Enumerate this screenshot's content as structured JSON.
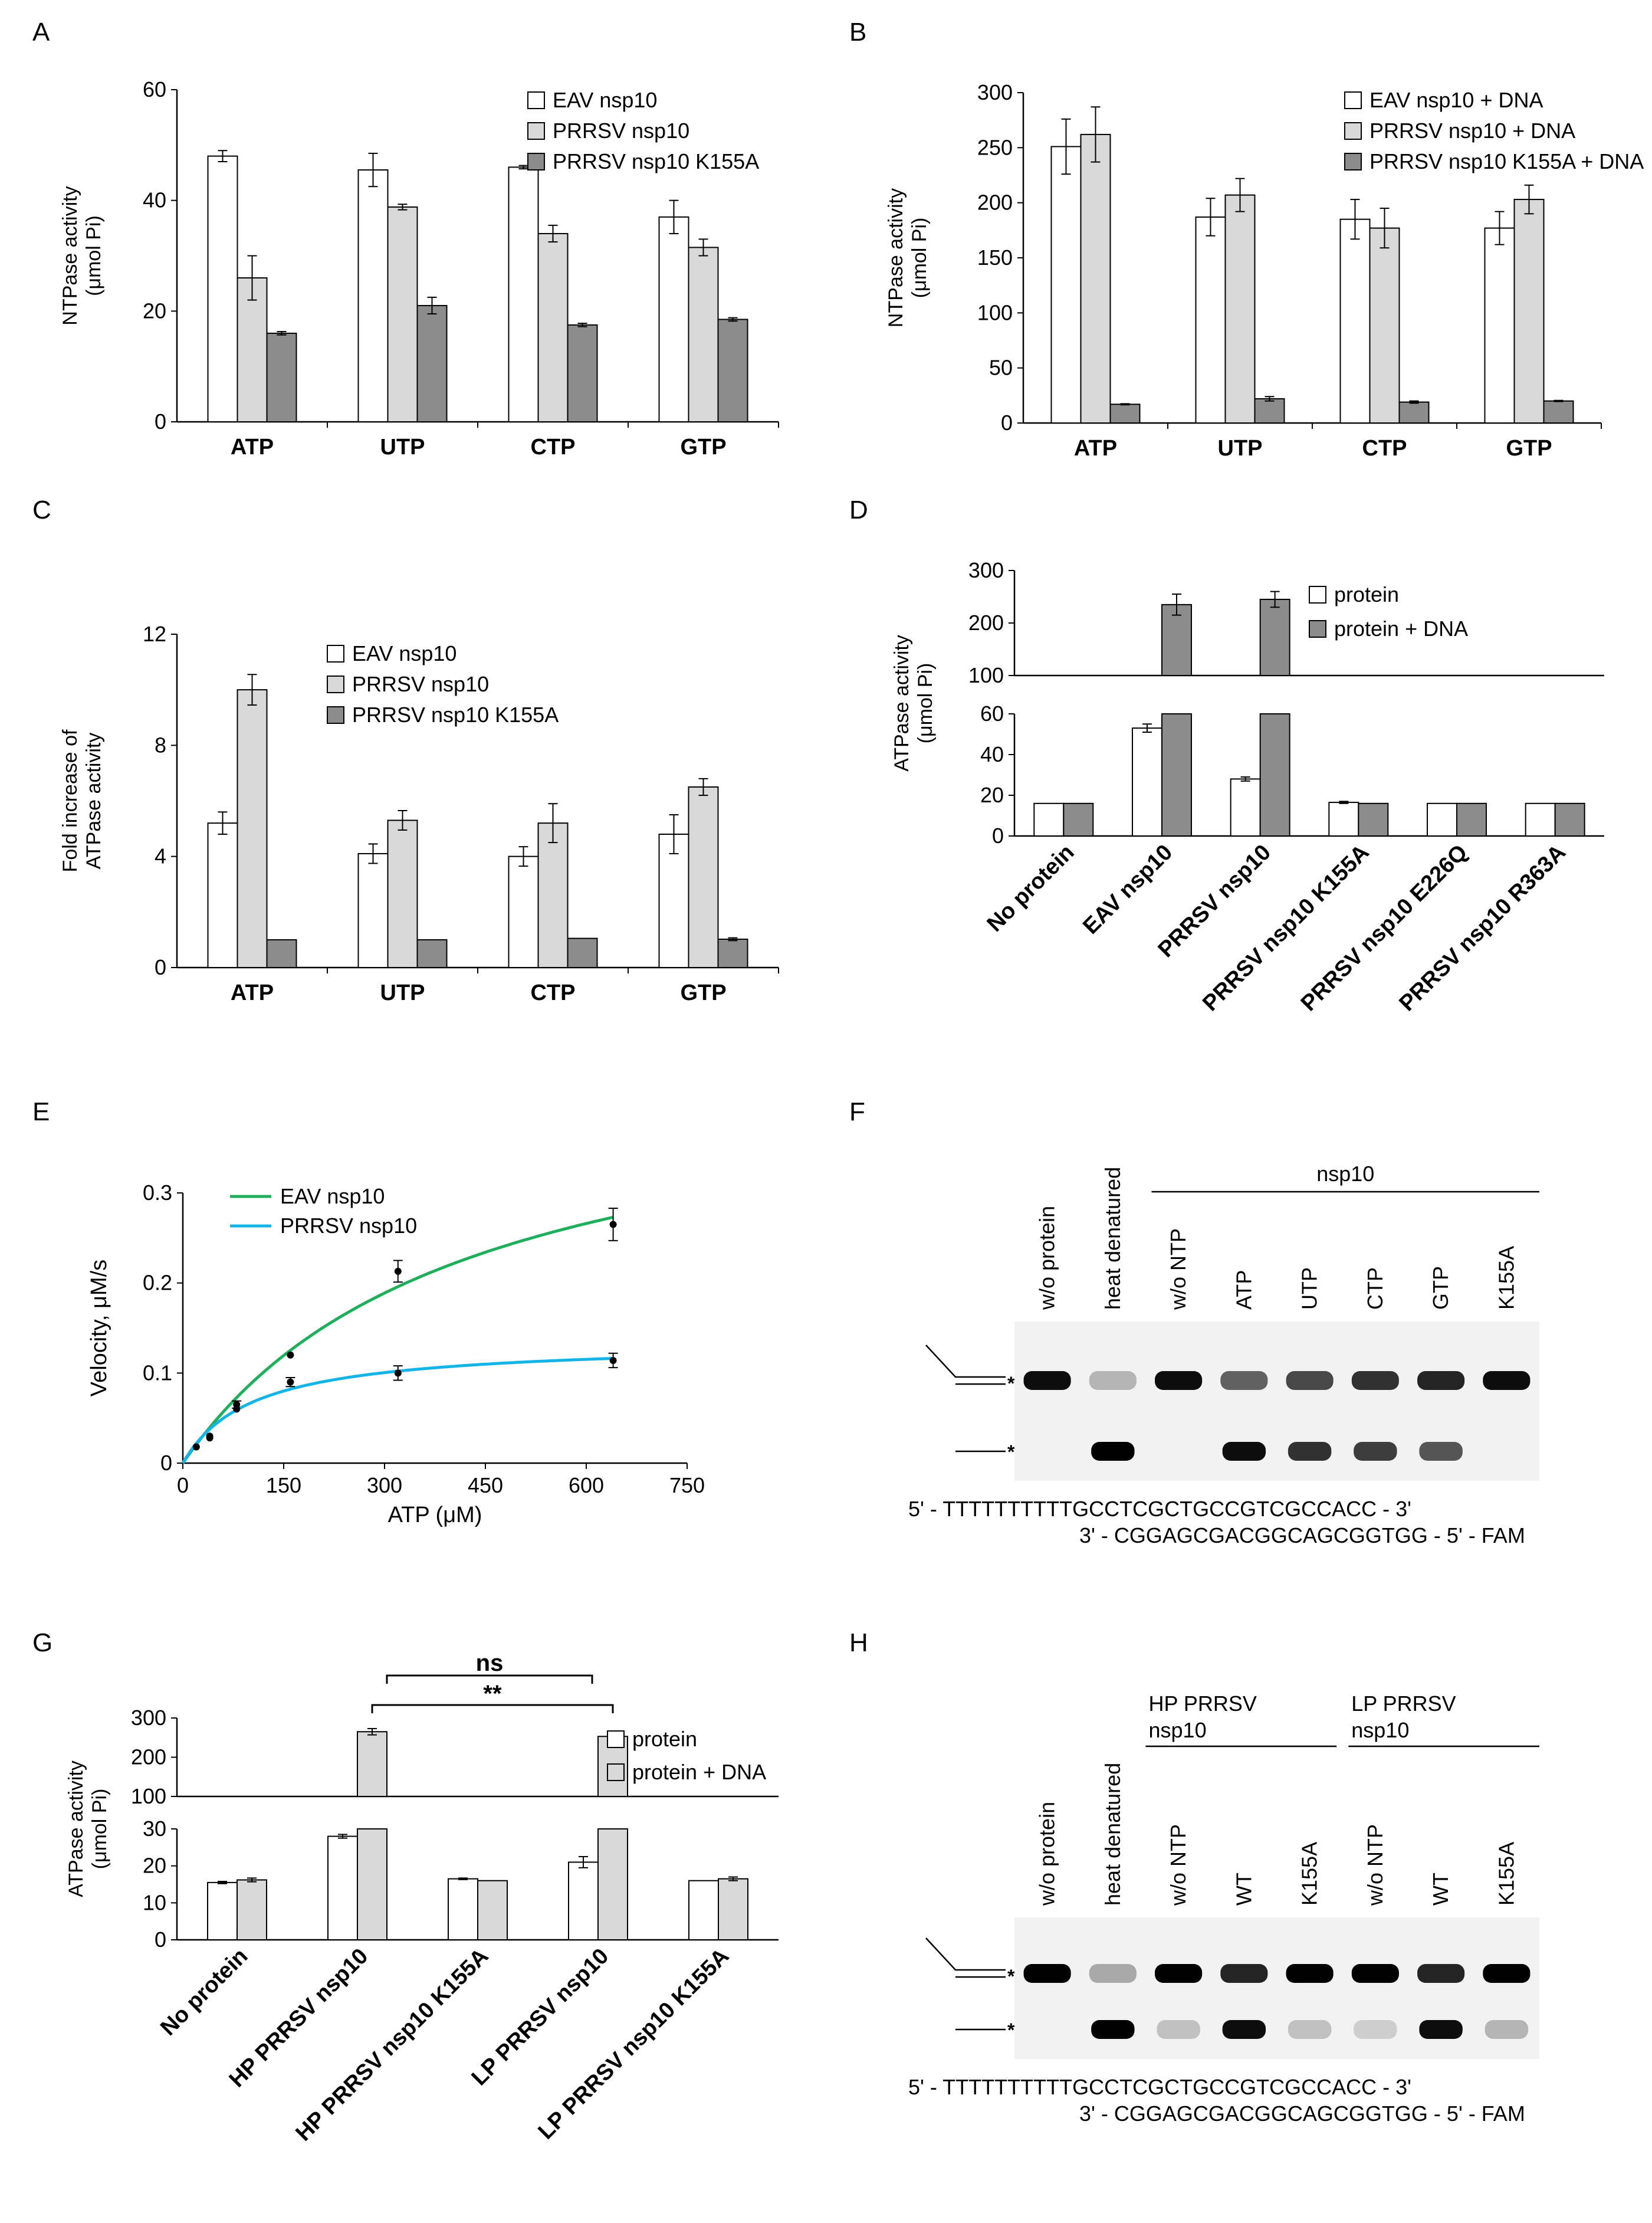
{
  "panels": {
    "A": {
      "label": "A"
    },
    "B": {
      "label": "B"
    },
    "C": {
      "label": "C"
    },
    "D": {
      "label": "D"
    },
    "E": {
      "label": "E"
    },
    "F": {
      "label": "F"
    },
    "G": {
      "label": "G"
    },
    "H": {
      "label": "H"
    }
  },
  "colors": {
    "white": "#ffffff",
    "light": "#d9d9d9",
    "dark": "#8c8c8c",
    "green": "#1fae5b",
    "blue": "#14b4e6"
  },
  "chart_data": [
    {
      "id": "A",
      "type": "bar",
      "ylabel": "NTPase activity (μmol Pi)",
      "ylabel_lines": [
        "NTPase activity",
        "(μmol Pi)"
      ],
      "ylim": [
        0,
        60
      ],
      "yticks": [
        0,
        20,
        40,
        60
      ],
      "categories": [
        "ATP",
        "UTP",
        "CTP",
        "GTP"
      ],
      "series": [
        {
          "name": "EAV nsp10",
          "color": "#ffffff",
          "values": [
            48,
            45.5,
            46,
            37
          ],
          "errors": [
            1,
            3,
            0.3,
            3
          ]
        },
        {
          "name": "PRRSV nsp10",
          "color": "#d9d9d9",
          "values": [
            26,
            38.8,
            34,
            31.5
          ],
          "errors": [
            4,
            0.5,
            1.5,
            1.5
          ]
        },
        {
          "name": "PRRSV nsp10 K155A",
          "color": "#8c8c8c",
          "values": [
            16,
            21,
            17.5,
            18.5
          ],
          "errors": [
            0.3,
            1.5,
            0.3,
            0.3
          ]
        }
      ],
      "legend": "top-right"
    },
    {
      "id": "B",
      "type": "bar",
      "ylabel": "NTPase activity (μmol Pi)",
      "ylabel_lines": [
        "NTPase activity",
        "(μmol Pi)"
      ],
      "ylim": [
        0,
        300
      ],
      "yticks": [
        0,
        50,
        100,
        150,
        200,
        250,
        300
      ],
      "categories": [
        "ATP",
        "UTP",
        "CTP",
        "GTP"
      ],
      "series": [
        {
          "name": "EAV nsp10 + DNA",
          "color": "#ffffff",
          "values": [
            251,
            187,
            185,
            177
          ],
          "errors": [
            25,
            17,
            18,
            15
          ]
        },
        {
          "name": "PRRSV nsp10 + DNA",
          "color": "#d9d9d9",
          "values": [
            262,
            207,
            177,
            203
          ],
          "errors": [
            25,
            15,
            18,
            13
          ]
        },
        {
          "name": "PRRSV nsp10 K155A + DNA",
          "color": "#8c8c8c",
          "values": [
            17,
            22,
            19,
            20
          ],
          "errors": [
            0.5,
            2,
            1,
            0.5
          ]
        }
      ],
      "legend": "top-right"
    },
    {
      "id": "C",
      "type": "bar",
      "ylabel": "Fold increase of ATPase activity",
      "ylabel_lines": [
        "Fold increase of",
        "ATPase activity"
      ],
      "ylim": [
        0,
        12
      ],
      "yticks": [
        0,
        4,
        8,
        12
      ],
      "categories": [
        "ATP",
        "UTP",
        "CTP",
        "GTP"
      ],
      "series": [
        {
          "name": "EAV nsp10",
          "color": "#ffffff",
          "values": [
            5.2,
            4.1,
            4.0,
            4.8
          ],
          "errors": [
            0.4,
            0.35,
            0.35,
            0.7
          ]
        },
        {
          "name": "PRRSV nsp10",
          "color": "#d9d9d9",
          "values": [
            10.0,
            5.3,
            5.2,
            6.5
          ],
          "errors": [
            0.55,
            0.35,
            0.7,
            0.3
          ]
        },
        {
          "name": "PRRSV nsp10 K155A",
          "color": "#8c8c8c",
          "values": [
            1.0,
            1.0,
            1.05,
            1.02
          ],
          "errors": [
            0,
            0,
            0,
            0.05
          ]
        }
      ],
      "legend": "top-right"
    },
    {
      "id": "D",
      "type": "bar",
      "ylabel": "ATPase activity (μmol Pi)",
      "ylabel_lines": [
        "ATPase activity",
        "(μmol Pi)"
      ],
      "axis_break": true,
      "ylim_lower": [
        0,
        60
      ],
      "ylim_upper": [
        100,
        300
      ],
      "yticks_lower": [
        0,
        20,
        40,
        60
      ],
      "yticks_upper": [
        100,
        200,
        300
      ],
      "categories": [
        "No protein",
        "EAV nsp10",
        "PRRSV nsp10",
        "PRRSV nsp10 K155A",
        "PRRSV nsp10 E226Q",
        "PRRSV nsp10 R363A"
      ],
      "series": [
        {
          "name": "protein",
          "color": "#ffffff",
          "values": [
            16,
            53,
            28,
            16.5,
            16,
            16
          ],
          "errors": [
            0,
            2,
            1,
            0.5,
            0,
            0
          ]
        },
        {
          "name": "protein + DNA",
          "color": "#8c8c8c",
          "values": [
            16,
            235,
            245,
            16,
            16,
            16
          ],
          "errors": [
            0,
            20,
            15,
            0,
            0,
            0
          ]
        }
      ],
      "legend": "top-right"
    },
    {
      "id": "E",
      "type": "scatter",
      "xlabel": "ATP (μM)",
      "ylabel": "Velocity, μM/s",
      "xlim": [
        0,
        750
      ],
      "ylim": [
        0,
        0.3
      ],
      "xticks": [
        0,
        150,
        300,
        450,
        600,
        750
      ],
      "yticks": [
        0,
        0.1,
        0.2,
        0.3
      ],
      "series": [
        {
          "name": "EAV nsp10",
          "color": "#1fae5b",
          "x": [
            20,
            40,
            80,
            160,
            320,
            640
          ],
          "y": [
            0.018,
            0.03,
            0.065,
            0.12,
            0.213,
            0.265
          ],
          "errors": [
            0,
            0,
            0.004,
            0,
            0.012,
            0.018
          ],
          "fit": {
            "vmax": 0.45,
            "km": 415
          }
        },
        {
          "name": "PRRSV nsp10",
          "color": "#14b4e6",
          "x": [
            20,
            40,
            80,
            160,
            320,
            640
          ],
          "y": [
            0.018,
            0.028,
            0.06,
            0.09,
            0.1,
            0.114
          ],
          "errors": [
            0,
            0,
            0,
            0.005,
            0.008,
            0.008
          ],
          "fit": {
            "vmax": 0.135,
            "km": 103
          }
        }
      ],
      "legend": "top-left"
    },
    {
      "id": "G",
      "type": "bar",
      "ylabel": "ATPase activity (μmol Pi)",
      "ylabel_lines": [
        "ATPase activity",
        "(μmol Pi)"
      ],
      "axis_break": true,
      "ylim_lower": [
        0,
        30
      ],
      "ylim_upper": [
        100,
        300
      ],
      "yticks_lower": [
        0,
        10,
        20,
        30
      ],
      "yticks_upper": [
        100,
        200,
        300
      ],
      "categories": [
        "No protein",
        "HP PRRSV nsp10",
        "HP PRRSV nsp10 K155A",
        "LP PRRSV nsp10",
        "LP PRRSV nsp10 K155A"
      ],
      "series": [
        {
          "name": "protein",
          "color": "#ffffff",
          "values": [
            15.5,
            28,
            16.5,
            21,
            16
          ],
          "errors": [
            0.3,
            0.5,
            0.2,
            1.5,
            0
          ]
        },
        {
          "name": "protein + DNA",
          "color": "#d9d9d9",
          "values": [
            16.2,
            265,
            16,
            253,
            16.5
          ],
          "errors": [
            0.5,
            8,
            0,
            8,
            0.5
          ]
        }
      ],
      "annotations": [
        {
          "text": "ns",
          "from": 1,
          "to": 3
        },
        {
          "text": "**",
          "from": 1,
          "to": 3
        }
      ],
      "legend": "top-right"
    }
  ],
  "gel_F": {
    "lanes": [
      "w/o protein",
      "heat denatured",
      "w/o NTP",
      "ATP",
      "UTP",
      "CTP",
      "GTP",
      "K155A"
    ],
    "group_label": "nsp10",
    "upper_band": [
      0.95,
      0.25,
      0.95,
      0.6,
      0.7,
      0.8,
      0.85,
      0.95
    ],
    "lower_band": [
      0,
      1.0,
      0,
      0.95,
      0.8,
      0.75,
      0.65,
      0
    ],
    "marker": "*",
    "seq_top": "5' - TTTTTTTTTTGCCTCGCTGCCGTCGCCACC - 3'",
    "seq_bottom": "3' - CGGAGCGACGGCAGCGGTGG - 5' - FAM"
  },
  "gel_H": {
    "lanes": [
      "w/o protein",
      "heat denatured",
      "w/o NTP",
      "WT",
      "K155A",
      "w/o NTP",
      "WT",
      "K155A"
    ],
    "group1_label": "HP PRRSV nsp10",
    "group2_label": "LP PRRSV nsp10",
    "upper_band": [
      1.0,
      0.3,
      1.0,
      0.85,
      1.0,
      1.0,
      0.85,
      1.0
    ],
    "lower_band": [
      0,
      1.0,
      0.2,
      0.95,
      0.2,
      0.15,
      0.95,
      0.25
    ],
    "marker": "*",
    "seq_top": "5' - TTTTTTTTTTGCCTCGCTGCCGTCGCCACC - 3'",
    "seq_bottom": "3' - CGGAGCGACGGCAGCGGTGG - 5' - FAM"
  }
}
